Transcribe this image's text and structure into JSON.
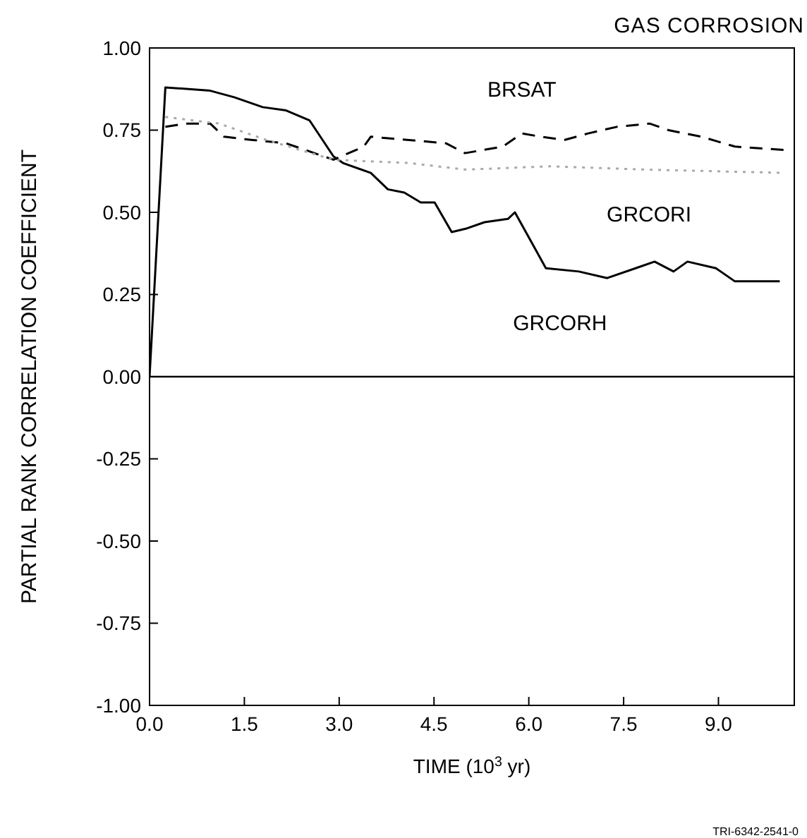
{
  "chart_data": {
    "type": "line",
    "title": "GAS  CORROSION",
    "xlabel": "TIME (10$^{3}$ yr)",
    "ylabel": "PARTIAL RANK CORRELATION COEFFICIENT",
    "xlim": [
      0,
      10.2
    ],
    "xticks": [
      {
        "value": 0,
        "label": "0.0"
      },
      1.5,
      {
        "value": 3,
        "label": "3.0"
      },
      4.5,
      {
        "value": 6,
        "label": "6.0"
      },
      7.5,
      {
        "value": 9,
        "label": "9.0"
      }
    ],
    "ylim": [
      -1,
      1
    ],
    "yticks": [
      {
        "value": -1,
        "label": "-1.00"
      },
      {
        "value": -0.75,
        "label": "-0.75"
      },
      {
        "value": -0.5,
        "label": "-0.50"
      },
      {
        "value": -0.25,
        "label": "-0.25"
      },
      {
        "value": 0,
        "label": "0.00"
      },
      {
        "value": 0.25,
        "label": "0.25"
      },
      {
        "value": 0.5,
        "label": "0.50"
      },
      {
        "value": 0.75,
        "label": "0.75"
      },
      {
        "value": 1,
        "label": "1.00"
      }
    ],
    "marker": "none",
    "ref_lines": [
      {
        "axis": "y",
        "value": 0,
        "color": "#000000"
      }
    ],
    "series": [
      {
        "name": "GRCORH",
        "color": "#000000",
        "line_style": "solid",
        "x": [
          0,
          0.25,
          0.96,
          1.34,
          1.79,
          2.16,
          2.53,
          2.91,
          3.06,
          3.5,
          3.77,
          4.03,
          4.29,
          4.51,
          4.78,
          5.0,
          5.3,
          5.67,
          5.78,
          6.27,
          6.79,
          7.24,
          7.69,
          7.99,
          8.29,
          8.51,
          8.96,
          9.26,
          9.97
        ],
        "values": [
          0,
          0.88,
          0.87,
          0.85,
          0.82,
          0.81,
          0.78,
          0.67,
          0.65,
          0.62,
          0.57,
          0.56,
          0.53,
          0.53,
          0.44,
          0.45,
          0.47,
          0.48,
          0.5,
          0.33,
          0.32,
          0.3,
          0.33,
          0.35,
          0.32,
          0.35,
          0.33,
          0.29,
          0.29
        ]
      },
      {
        "name": "BRSAT",
        "color": "#000000",
        "line_style": "dashed",
        "x": [
          0.25,
          0.58,
          0.96,
          1.18,
          1.63,
          2.16,
          2.46,
          2.91,
          3.39,
          3.5,
          4.1,
          4.69,
          4.99,
          5.59,
          5.89,
          6.19,
          6.56,
          6.94,
          7.39,
          7.91,
          8.21,
          8.73,
          9.26,
          10.04
        ],
        "values": [
          0.76,
          0.77,
          0.77,
          0.73,
          0.72,
          0.71,
          0.69,
          0.66,
          0.7,
          0.73,
          0.72,
          0.71,
          0.68,
          0.7,
          0.74,
          0.73,
          0.72,
          0.74,
          0.76,
          0.77,
          0.75,
          0.73,
          0.7,
          0.69
        ]
      },
      {
        "name": "GRCORI",
        "color": "#aaaaaa",
        "line_style": "dotted",
        "x": [
          0.25,
          1.1,
          1.85,
          2.91,
          4.1,
          5.0,
          6.34,
          7.84,
          10.04
        ],
        "values": [
          0.79,
          0.77,
          0.72,
          0.66,
          0.65,
          0.63,
          0.64,
          0.63,
          0.62
        ]
      }
    ],
    "annotations": [
      "TRI-6342-2541-0"
    ]
  }
}
